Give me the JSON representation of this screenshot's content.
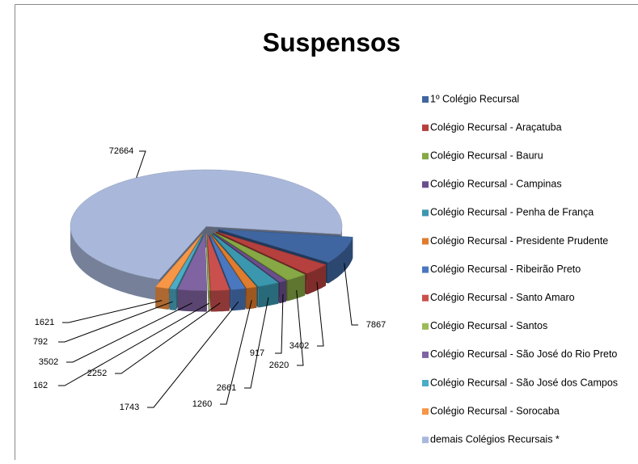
{
  "chart_data": {
    "type": "pie",
    "title": "Suspensos",
    "categories": [
      "1º Colégio Recursal",
      "Colégio Recursal - Araçatuba",
      "Colégio Recursal - Bauru",
      "Colégio Recursal - Campinas",
      "Colégio Recursal - Penha de França",
      "Colégio Recursal - Presidente Prudente",
      "Colégio Recursal - Ribeirão Preto",
      "Colégio Recursal - Santo Amaro",
      "Colégio Recursal - Santos",
      "Colégio Recursal - São José do Rio Preto",
      "Colégio Recursal - São José dos Campos",
      "Colégio Recursal - Sorocaba",
      "demais Colégios Recursais *"
    ],
    "values": [
      7867,
      3402,
      2620,
      917,
      2661,
      1260,
      1743,
      2252,
      162,
      3502,
      792,
      1621,
      72664
    ],
    "colors": [
      "#3F66A0",
      "#B5403D",
      "#86A845",
      "#6A4F8C",
      "#3B97AE",
      "#E07C2E",
      "#4A78C0",
      "#C9504D",
      "#9BBB59",
      "#8064A2",
      "#4BACC6",
      "#F79646",
      "#A9B8DA"
    ],
    "legend": "right"
  }
}
